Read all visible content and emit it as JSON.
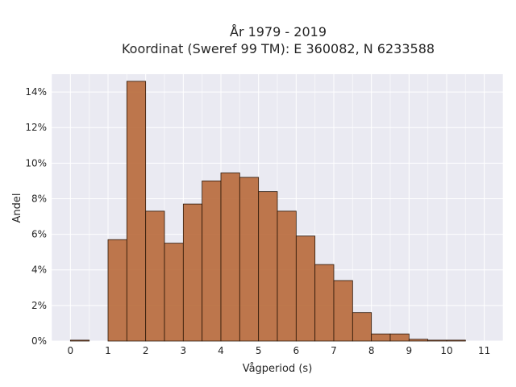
{
  "chart_data": {
    "type": "bar",
    "title_line1": "År 1979 - 2019",
    "title_line2": "Koordinat (Sweref 99 TM): E 360082, N 6233588",
    "xlabel": "Vågperiod (s)",
    "ylabel": "Andel",
    "bin_width": 0.5,
    "bin_starts": [
      0,
      0.5,
      1,
      1.5,
      2,
      2.5,
      3,
      3.5,
      4,
      4.5,
      5,
      5.5,
      6,
      6.5,
      7,
      7.5,
      8,
      8.5,
      9,
      9.5,
      10,
      10.5
    ],
    "values": [
      0.05,
      0,
      5.7,
      14.6,
      7.3,
      5.5,
      7.7,
      9.0,
      9.45,
      9.2,
      8.4,
      7.3,
      5.9,
      4.3,
      3.4,
      1.6,
      0.4,
      0.4,
      0.1,
      0.05,
      0.05,
      0
    ],
    "xlim": [
      -0.5,
      11.5
    ],
    "ylim": [
      0,
      15
    ],
    "x_ticks": [
      0,
      1,
      2,
      3,
      4,
      5,
      6,
      7,
      8,
      9,
      10,
      11
    ],
    "x_tick_labels": [
      "0",
      "1",
      "2",
      "3",
      "4",
      "5",
      "6",
      "7",
      "8",
      "9",
      "10",
      "11"
    ],
    "y_ticks": [
      0,
      2,
      4,
      6,
      8,
      10,
      12,
      14
    ],
    "y_tick_labels": [
      "0%",
      "2%",
      "4%",
      "6%",
      "8%",
      "10%",
      "12%",
      "14%"
    ],
    "grid": true,
    "bar_color": "#b8693a",
    "background_color": "#eaeaf2"
  }
}
